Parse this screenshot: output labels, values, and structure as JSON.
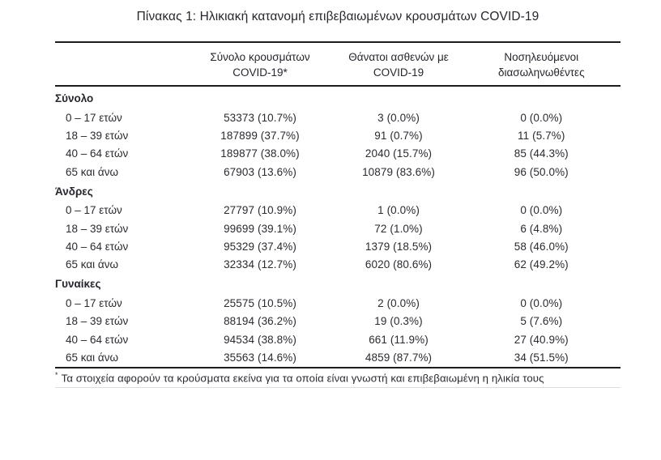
{
  "title": "Πίνακας 1: Ηλικιακή κατανομή επιβεβαιωμένων κρουσμάτων COVID-19",
  "table": {
    "columns": [
      {
        "line1": "Σύνολο κρουσμάτων",
        "line2": "COVID-19*"
      },
      {
        "line1": "Θάνατοι ασθενών με",
        "line2": "COVID-19"
      },
      {
        "line1": "Νοσηλευόμενοι",
        "line2": "διασωληνωθέντες"
      }
    ],
    "sections": [
      {
        "label": "Σύνολο",
        "rows": [
          {
            "age": "0 – 17 ετών",
            "cases": "53373 (10.7%)",
            "deaths": "3 (0.0%)",
            "intubated": "0 (0.0%)"
          },
          {
            "age": "18 – 39 ετών",
            "cases": "187899 (37.7%)",
            "deaths": "91 (0.7%)",
            "intubated": "11 (5.7%)"
          },
          {
            "age": "40 – 64 ετών",
            "cases": "189877 (38.0%)",
            "deaths": "2040 (15.7%)",
            "intubated": "85 (44.3%)"
          },
          {
            "age": "65 και άνω",
            "cases": "67903 (13.6%)",
            "deaths": "10879 (83.6%)",
            "intubated": "96 (50.0%)"
          }
        ]
      },
      {
        "label": "Άνδρες",
        "rows": [
          {
            "age": "0 – 17 ετών",
            "cases": "27797 (10.9%)",
            "deaths": "1 (0.0%)",
            "intubated": "0 (0.0%)"
          },
          {
            "age": "18 – 39 ετών",
            "cases": "99699 (39.1%)",
            "deaths": "72 (1.0%)",
            "intubated": "6 (4.8%)"
          },
          {
            "age": "40 – 64 ετών",
            "cases": "95329 (37.4%)",
            "deaths": "1379 (18.5%)",
            "intubated": "58 (46.0%)"
          },
          {
            "age": "65 και άνω",
            "cases": "32334 (12.7%)",
            "deaths": "6020 (80.6%)",
            "intubated": "62 (49.2%)"
          }
        ]
      },
      {
        "label": "Γυναίκες",
        "rows": [
          {
            "age": "0 – 17 ετών",
            "cases": "25575 (10.5%)",
            "deaths": "2 (0.0%)",
            "intubated": "0 (0.0%)"
          },
          {
            "age": "18 – 39 ετών",
            "cases": "88194 (36.2%)",
            "deaths": "19 (0.3%)",
            "intubated": "5 (7.6%)"
          },
          {
            "age": "40 – 64 ετών",
            "cases": "94534 (38.8%)",
            "deaths": "661 (11.9%)",
            "intubated": "27 (40.9%)"
          },
          {
            "age": "65 και άνω",
            "cases": "35563 (14.6%)",
            "deaths": "4859 (87.7%)",
            "intubated": "34 (51.5%)"
          }
        ]
      }
    ],
    "footnote_marker": "*",
    "footnote": "Τα στοιχεία αφορούν τα κρούσματα εκείνα για τα οποία είναι γνωστή και επιβεβαιωμένη η ηλικία τους"
  },
  "colors": {
    "text": "#2a2a31",
    "rule": "#1c1c1c",
    "light_rule": "#dcdcdc",
    "background": "#ffffff"
  }
}
